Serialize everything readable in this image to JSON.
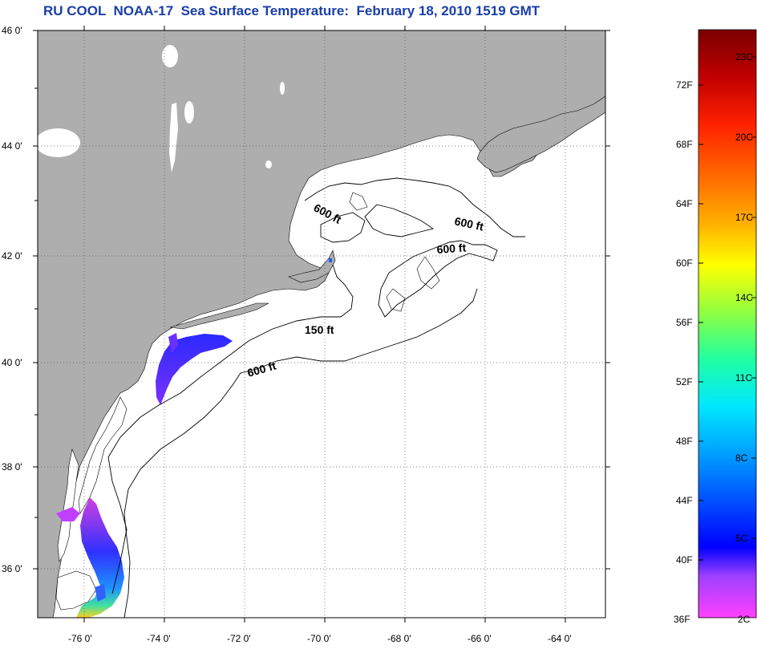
{
  "title": "RU COOL  NOAA-17  Sea Surface Temperature:  February 18, 2010 1519 GMT",
  "colors": {
    "land": "#aeaeae",
    "ocean": "#ffffff",
    "title": "#1a3ea8",
    "grid": "#555555"
  },
  "map": {
    "lat_range": [
      35,
      46
    ],
    "lon_range": [
      -77,
      -63
    ],
    "lat_labels": [
      "46 0'",
      "44 0'",
      "42 0'",
      "40 0'",
      "38 0'",
      "36 0'"
    ],
    "lon_labels": [
      "-76 0'",
      "-74 0'",
      "-72 0'",
      "-70 0'",
      "-68 0'",
      "-66 0'",
      "-64 0'"
    ],
    "contour_labels": [
      {
        "text": "600 ft",
        "id": "contour-label-gulf-of-maine-west"
      },
      {
        "text": "600 ft",
        "id": "contour-label-gulf-of-maine-east"
      },
      {
        "text": "600 ft",
        "id": "contour-label-georges-bank"
      },
      {
        "text": "150 ft",
        "id": "contour-label-nantucket-shoals"
      },
      {
        "text": "600 ft",
        "id": "contour-label-shelf-break"
      }
    ]
  },
  "colorbar": {
    "fahrenheit_labels": [
      "72F",
      "68F",
      "64F",
      "60F",
      "56F",
      "52F",
      "48F",
      "44F",
      "40F",
      "36F"
    ],
    "celsius_labels": [
      "23C",
      "20C",
      "17C",
      "14C",
      "11C",
      "8C",
      "5C",
      "2C"
    ],
    "gradient": [
      "#7a0000",
      "#c00000",
      "#ff2000",
      "#ff6a00",
      "#ffb000",
      "#ffff00",
      "#90ff40",
      "#20ffa0",
      "#00e8ff",
      "#00a0ff",
      "#0050ff",
      "#0000ff",
      "#a040ff",
      "#ff40ff"
    ]
  }
}
